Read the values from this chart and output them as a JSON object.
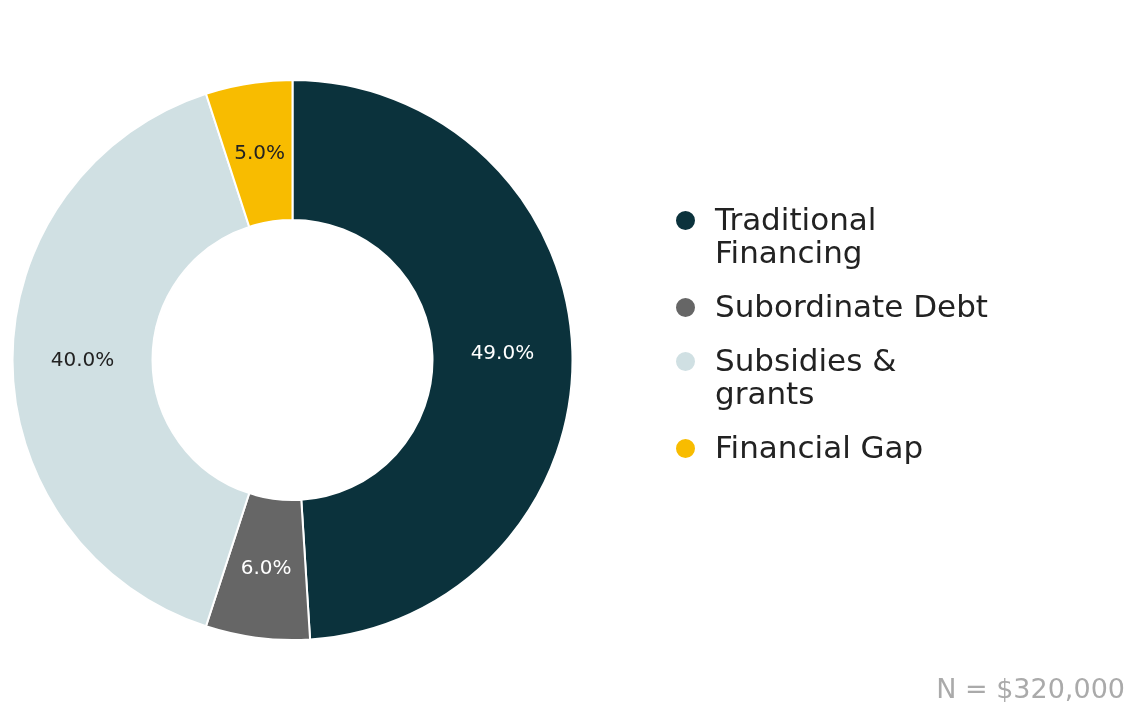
{
  "chart_data": {
    "type": "donut",
    "categories": [
      "Traditional Financing",
      "Subordinate Debt",
      "Subsidies & grants",
      "Financial Gap"
    ],
    "values": [
      49,
      6,
      40,
      5
    ],
    "value_labels": [
      "49.0%",
      "6.0%",
      "40.0%",
      "5.0%"
    ],
    "colors": [
      "#0b323c",
      "#666666",
      "#d0e0e3",
      "#f8bc00"
    ],
    "legend": "right",
    "annotations": [
      "N = $320,000"
    ]
  }
}
